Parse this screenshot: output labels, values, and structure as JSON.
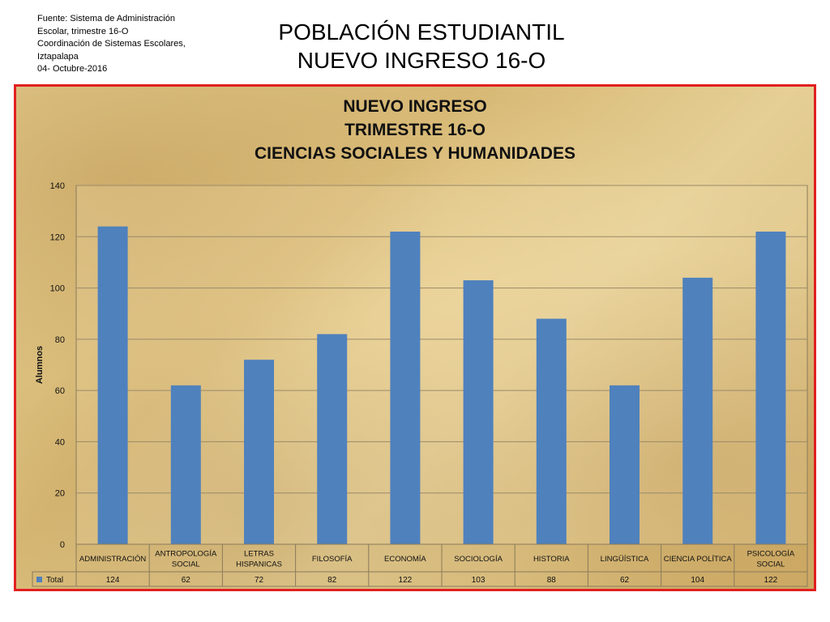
{
  "source": {
    "lines": [
      "Fuente: Sistema de Administración",
      "Escolar, trimestre 16-O",
      "Coordinación de Sistemas Escolares,",
      "Iztapalapa",
      "04- Octubre-2016"
    ]
  },
  "slide_title": {
    "line1": "POBLACIÓN ESTUDIANTIL",
    "line2": "NUEVO INGRESO 16-O"
  },
  "chart_data": {
    "type": "bar",
    "title": [
      "NUEVO INGRESO",
      "TRIMESTRE 16-O",
      "CIENCIAS SOCIALES Y HUMANIDADES"
    ],
    "ylabel": "Alumnos",
    "xlabel": "",
    "ylim": [
      0,
      140
    ],
    "yticks": [
      0,
      20,
      40,
      60,
      80,
      100,
      120,
      140
    ],
    "grid": true,
    "categories": [
      [
        "ADMINISTRACIÓN"
      ],
      [
        "ANTROPOLOGÍA",
        "SOCIAL"
      ],
      [
        "LETRAS",
        "HISPANICAS"
      ],
      [
        "FILOSOFÍA"
      ],
      [
        "ECONOMÍA"
      ],
      [
        "SOCIOLOGÍA"
      ],
      [
        "HISTORIA"
      ],
      [
        "LINGÜÍSTICA"
      ],
      [
        "CIENCIA POLÍTICA"
      ],
      [
        "PSICOLOGÍA",
        "SOCIAL"
      ]
    ],
    "series": [
      {
        "name": "Total",
        "color": "#4f81bd",
        "values": [
          124,
          62,
          72,
          82,
          122,
          103,
          88,
          62,
          104,
          122
        ]
      }
    ],
    "legend_placement": "data-table"
  },
  "colors": {
    "frame_border": "#e02020",
    "bar": "#4f81bd",
    "grid": "#9a8a6a"
  }
}
